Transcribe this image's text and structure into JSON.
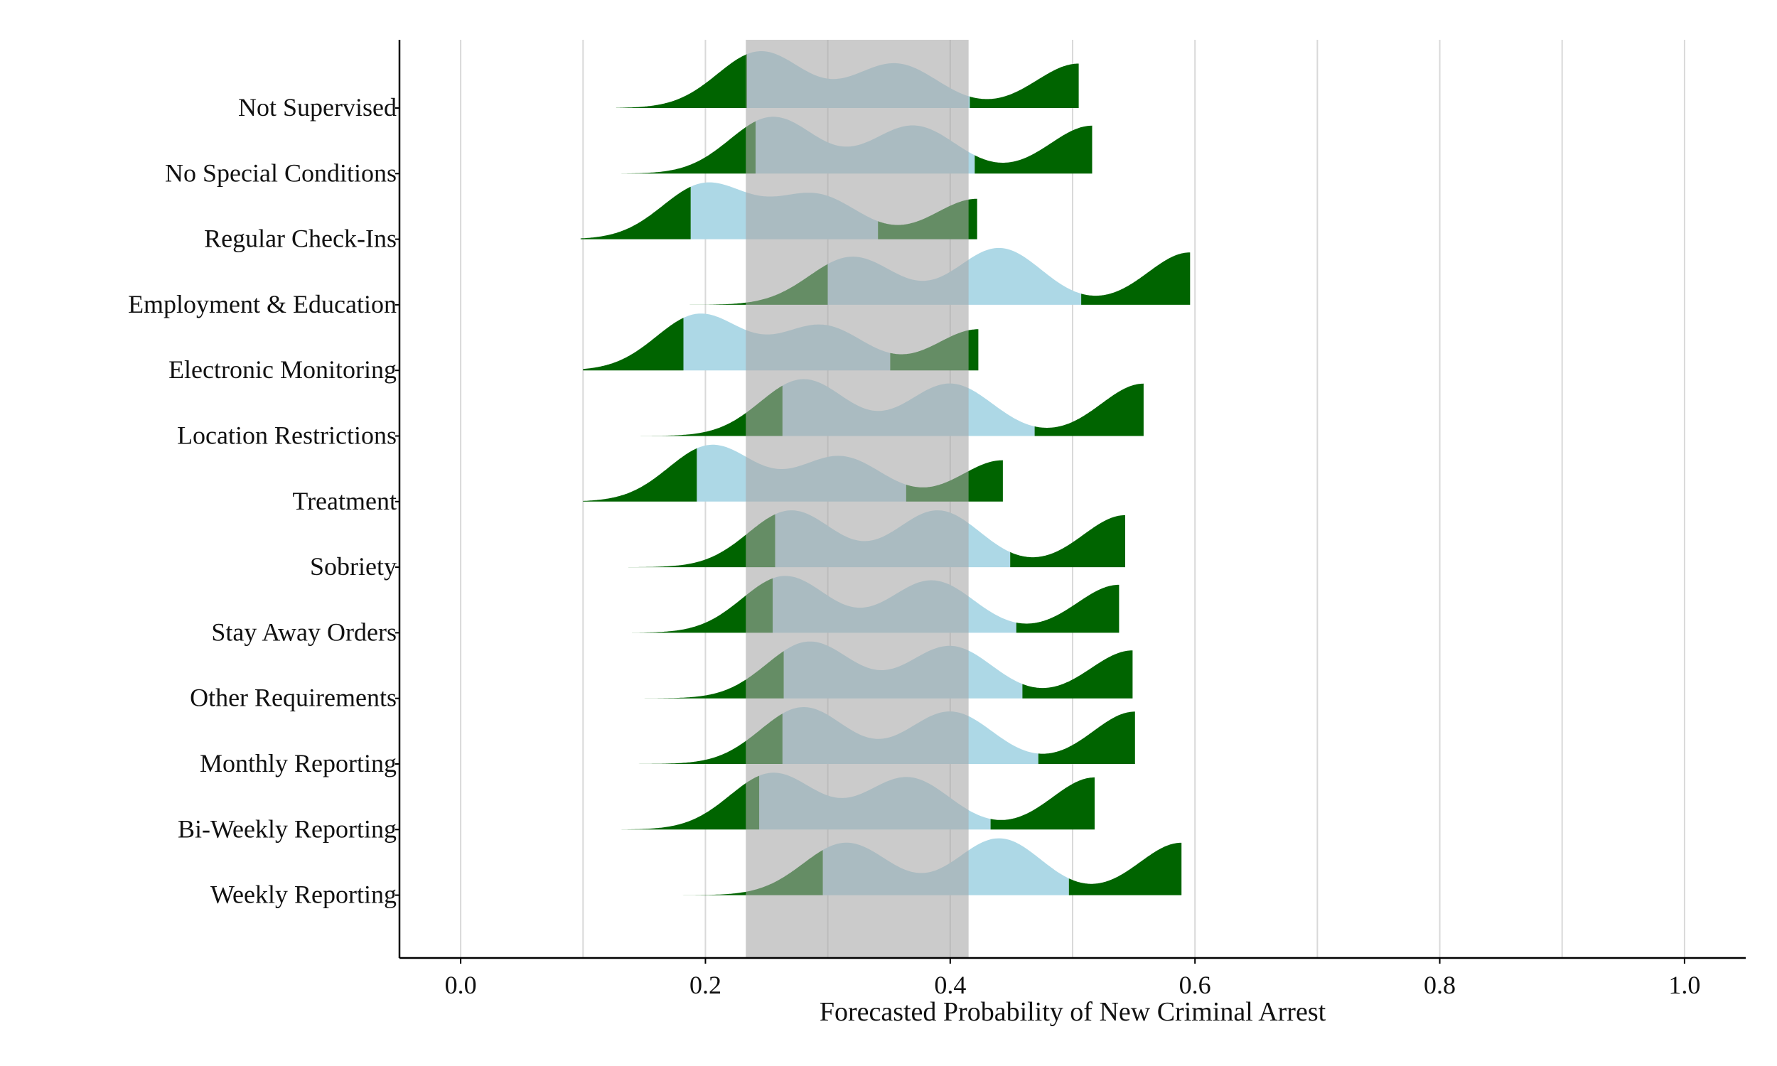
{
  "chart_data": {
    "type": "ridgeline",
    "title": "",
    "xlabel": "Forecasted Probability of New Criminal Arrest",
    "ylabel": "",
    "xlim": [
      -0.05,
      1.05
    ],
    "xticks": [
      0.0,
      0.2,
      0.4,
      0.6,
      0.8,
      1.0
    ],
    "xtick_labels": [
      "0.0",
      "0.2",
      "0.4",
      "0.6",
      "0.8",
      "1.0"
    ],
    "grid": "vertical",
    "reference_band": {
      "x0": 0.233,
      "x1": 0.415,
      "color": "#a9a9a9",
      "opacity": 0.6
    },
    "colors": {
      "tail": "#006400",
      "center": "#add8e6"
    },
    "categories": [
      "Not Supervised",
      "No Special Conditions",
      "Regular Check-Ins",
      "Employment & Education",
      "Electronic Monitoring",
      "Location Restrictions",
      "Treatment",
      "Sobriety",
      "Stay Away Orders",
      "Other Requirements",
      "Monthly Reporting",
      "Bi-Weekly Reporting",
      "Weekly Reporting"
    ],
    "series": [
      {
        "name": "Not Supervised",
        "min": 0.127,
        "max": 0.505,
        "q_low": 0.234,
        "q_high": 0.416,
        "peaks": [
          [
            0.245,
            0.7
          ],
          [
            0.355,
            0.55
          ],
          [
            0.505,
            0.55
          ]
        ]
      },
      {
        "name": "No Special Conditions",
        "min": 0.129,
        "max": 0.516,
        "q_low": 0.241,
        "q_high": 0.42,
        "peaks": [
          [
            0.255,
            0.65
          ],
          [
            0.37,
            0.55
          ],
          [
            0.516,
            0.55
          ]
        ]
      },
      {
        "name": "Regular Check-Ins",
        "min": 0.098,
        "max": 0.422,
        "q_low": 0.188,
        "q_high": 0.341,
        "peaks": [
          [
            0.2,
            0.75
          ],
          [
            0.29,
            0.6
          ],
          [
            0.422,
            0.55
          ]
        ]
      },
      {
        "name": "Employment & Education",
        "min": 0.164,
        "max": 0.596,
        "q_low": 0.3,
        "q_high": 0.507,
        "peaks": [
          [
            0.32,
            0.55
          ],
          [
            0.44,
            0.65
          ],
          [
            0.596,
            0.6
          ]
        ]
      },
      {
        "name": "Electronic Monitoring",
        "min": 0.1,
        "max": 0.423,
        "q_low": 0.182,
        "q_high": 0.351,
        "peaks": [
          [
            0.195,
            0.75
          ],
          [
            0.295,
            0.6
          ],
          [
            0.423,
            0.55
          ]
        ]
      },
      {
        "name": "Location Restrictions",
        "min": 0.147,
        "max": 0.558,
        "q_low": 0.263,
        "q_high": 0.469,
        "peaks": [
          [
            0.28,
            0.65
          ],
          [
            0.4,
            0.6
          ],
          [
            0.558,
            0.6
          ]
        ]
      },
      {
        "name": "Treatment",
        "min": 0.1,
        "max": 0.443,
        "q_low": 0.193,
        "q_high": 0.364,
        "peaks": [
          [
            0.205,
            0.75
          ],
          [
            0.31,
            0.6
          ],
          [
            0.443,
            0.55
          ]
        ]
      },
      {
        "name": "Sobriety",
        "min": 0.137,
        "max": 0.543,
        "q_low": 0.257,
        "q_high": 0.449,
        "peaks": [
          [
            0.27,
            0.6
          ],
          [
            0.39,
            0.6
          ],
          [
            0.543,
            0.55
          ]
        ]
      },
      {
        "name": "Stay Away Orders",
        "min": 0.14,
        "max": 0.538,
        "q_low": 0.255,
        "q_high": 0.454,
        "peaks": [
          [
            0.265,
            0.65
          ],
          [
            0.385,
            0.6
          ],
          [
            0.538,
            0.55
          ]
        ]
      },
      {
        "name": "Other Requirements",
        "min": 0.148,
        "max": 0.549,
        "q_low": 0.264,
        "q_high": 0.459,
        "peaks": [
          [
            0.285,
            0.65
          ],
          [
            0.4,
            0.6
          ],
          [
            0.549,
            0.55
          ]
        ]
      },
      {
        "name": "Monthly Reporting",
        "min": 0.138,
        "max": 0.551,
        "q_low": 0.263,
        "q_high": 0.472,
        "peaks": [
          [
            0.28,
            0.65
          ],
          [
            0.4,
            0.6
          ],
          [
            0.551,
            0.6
          ]
        ]
      },
      {
        "name": "Bi-Weekly Reporting",
        "min": 0.125,
        "max": 0.518,
        "q_low": 0.244,
        "q_high": 0.433,
        "peaks": [
          [
            0.255,
            0.65
          ],
          [
            0.365,
            0.6
          ],
          [
            0.518,
            0.6
          ]
        ]
      },
      {
        "name": "Weekly Reporting",
        "min": 0.161,
        "max": 0.589,
        "q_low": 0.296,
        "q_high": 0.497,
        "peaks": [
          [
            0.315,
            0.6
          ],
          [
            0.44,
            0.65
          ],
          [
            0.589,
            0.6
          ]
        ]
      }
    ]
  }
}
